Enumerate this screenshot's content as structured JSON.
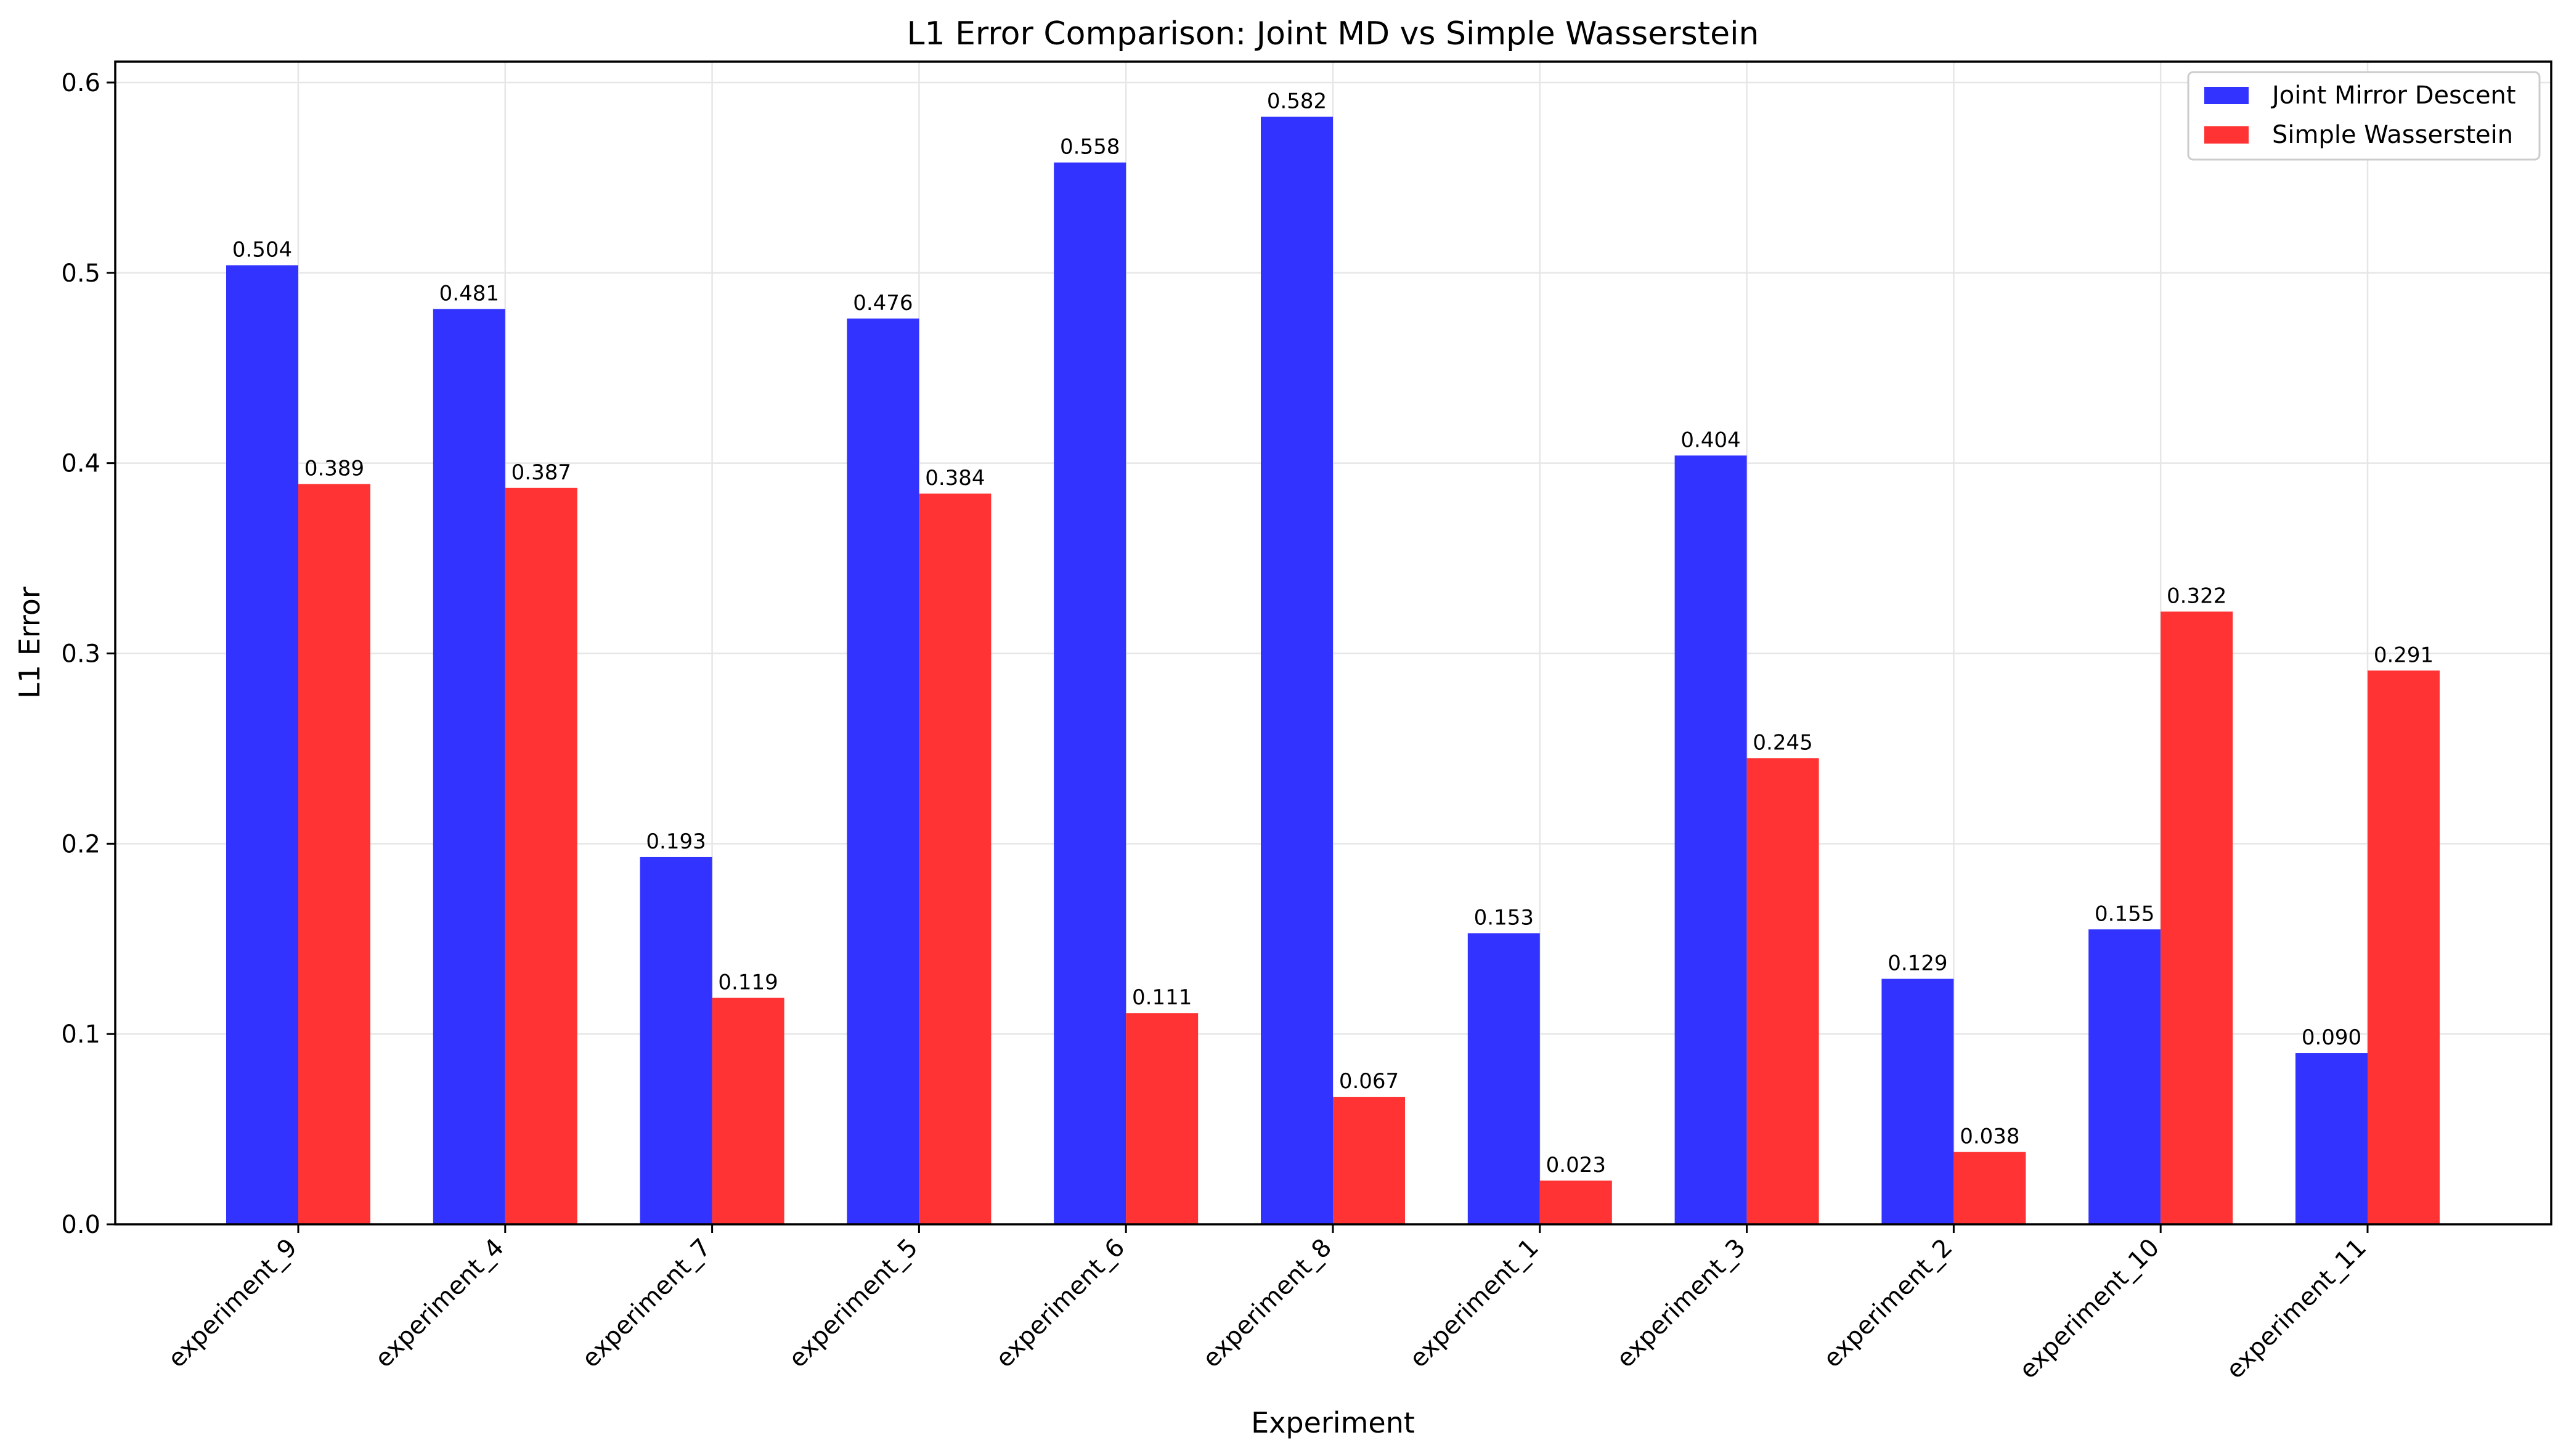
{
  "chart_data": {
    "type": "bar",
    "title": "L1 Error Comparison: Joint MD vs Simple Wasserstein",
    "xlabel": "Experiment",
    "ylabel": "L1 Error",
    "categories": [
      "experiment_9",
      "experiment_4",
      "experiment_7",
      "experiment_5",
      "experiment_6",
      "experiment_8",
      "experiment_1",
      "experiment_3",
      "experiment_2",
      "experiment_10",
      "experiment_11"
    ],
    "series": [
      {
        "name": "Joint Mirror Descent",
        "color": "#3333ff",
        "values": [
          0.504,
          0.481,
          0.193,
          0.476,
          0.558,
          0.582,
          0.153,
          0.404,
          0.129,
          0.155,
          0.09
        ]
      },
      {
        "name": "Simple Wasserstein",
        "color": "#ff3333",
        "values": [
          0.389,
          0.387,
          0.119,
          0.384,
          0.111,
          0.067,
          0.023,
          0.245,
          0.038,
          0.322,
          0.291
        ]
      }
    ],
    "ylim": [
      0,
      0.611
    ],
    "yticks": [
      "0.0",
      "0.1",
      "0.2",
      "0.3",
      "0.4",
      "0.5",
      "0.6"
    ],
    "grid": true,
    "legend_placement": "top-right"
  }
}
